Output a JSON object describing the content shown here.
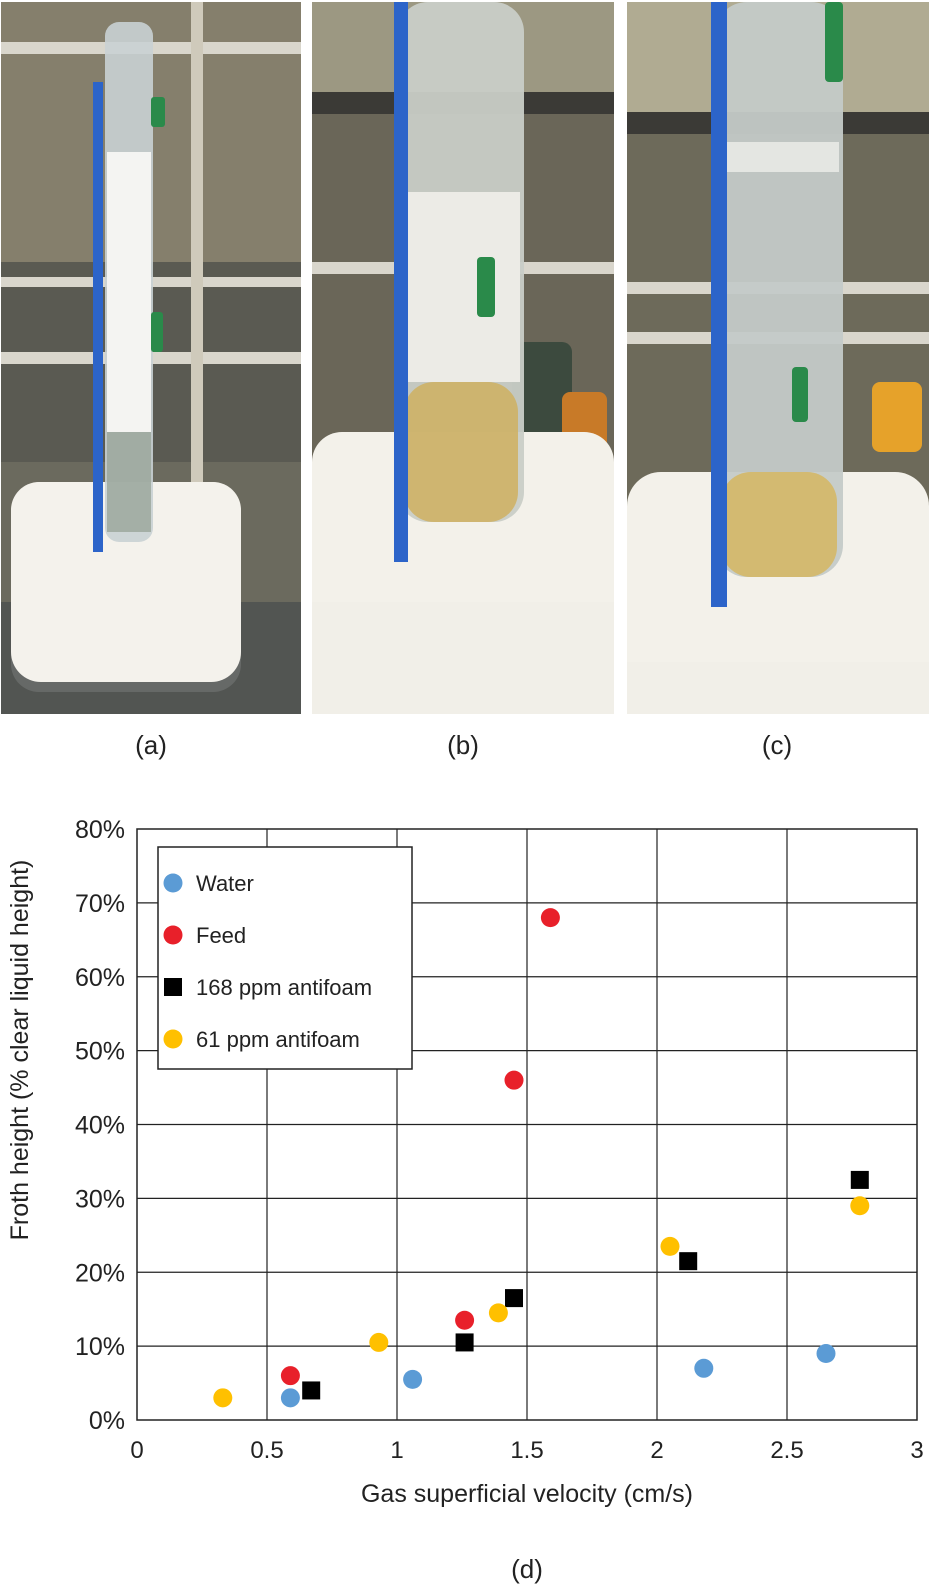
{
  "panels": [
    {
      "label": "(a)"
    },
    {
      "label": "(b)"
    },
    {
      "label": "(c)"
    }
  ],
  "colors": {
    "water": "#5b9bd5",
    "feed": "#e8202a",
    "antifoam_168": "#000000",
    "antifoam_61": "#ffc000"
  },
  "chart_panel_label": "(d)",
  "chart_data": {
    "type": "scatter",
    "xlabel": "Gas superficial velocity (cm/s)",
    "ylabel": "Froth height (% clear liquid height)",
    "xlim": [
      0,
      3
    ],
    "ylim": [
      0,
      80
    ],
    "x_ticks": [
      "0",
      "0.5",
      "1",
      "1.5",
      "2",
      "2.5",
      "3"
    ],
    "y_ticks": [
      "0%",
      "10%",
      "20%",
      "30%",
      "40%",
      "50%",
      "60%",
      "70%",
      "80%"
    ],
    "grid": true,
    "legend_position": "top-left",
    "series": [
      {
        "name": "Water",
        "marker": "circle",
        "color": "#5b9bd5",
        "x": [
          0.59,
          1.06,
          2.18,
          2.65
        ],
        "y": [
          3,
          5.5,
          7,
          9
        ]
      },
      {
        "name": "Feed",
        "marker": "circle",
        "color": "#e8202a",
        "x": [
          0.59,
          1.26,
          1.45,
          1.59
        ],
        "y": [
          6,
          13.5,
          46,
          68
        ]
      },
      {
        "name": "168 ppm antifoam",
        "marker": "square",
        "color": "#000000",
        "x": [
          0.67,
          1.26,
          1.45,
          2.12,
          2.78
        ],
        "y": [
          4,
          10.5,
          16.5,
          21.5,
          32.5
        ]
      },
      {
        "name": "61 ppm antifoam",
        "marker": "circle",
        "color": "#ffc000",
        "x": [
          0.33,
          0.93,
          1.39,
          2.05,
          2.78
        ],
        "y": [
          3,
          10.5,
          14.5,
          23.5,
          29
        ]
      }
    ]
  }
}
